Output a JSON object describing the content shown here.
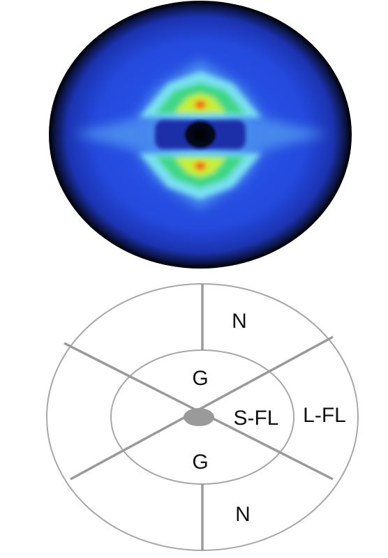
{
  "diffraction_pattern": {
    "colormap": [
      "#000000",
      "#1e3ecf",
      "#2a5cf0",
      "#6fd4f5",
      "#3cd884",
      "#e6ef2a",
      "#e8321e"
    ],
    "description_visible": false
  },
  "schematic": {
    "labels": {
      "north_top": "N",
      "north_bottom": "N",
      "gap_top": "G",
      "gap_bottom": "G",
      "short_fl": "S-FL",
      "long_fl": "L-FL"
    },
    "colors": {
      "ring_stroke": "#a7a7a7",
      "divider_stroke": "#9a9a9a",
      "center_dot": "#9a9a9a"
    }
  }
}
